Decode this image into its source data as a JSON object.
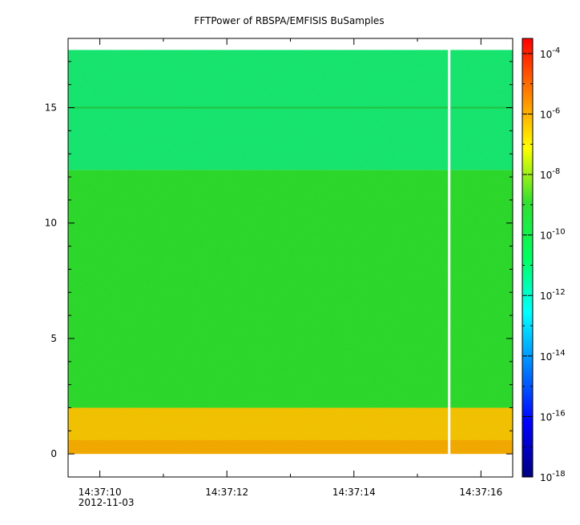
{
  "chart_data": {
    "type": "heatmap",
    "title": "FFTPower of RBSPA/EMFISIS  BuSamples",
    "xlabel": "",
    "ylabel": "",
    "x_tick_labels": [
      "14:37:10",
      "14:37:12",
      "14:37:14",
      "14:37:16"
    ],
    "x_tick_values_sec": [
      10,
      12,
      14,
      16
    ],
    "x_date_label": "2012-11-03",
    "xlim_sec": [
      9.5,
      16.5
    ],
    "y_ticks": [
      0,
      5,
      10,
      15
    ],
    "ylim": [
      -1,
      18
    ],
    "z_scale": "log",
    "zlim_exp": [
      -18,
      -3.5
    ],
    "z_tick_exponents": [
      -4,
      -6,
      -8,
      -10,
      -12,
      -14,
      -16,
      -18
    ],
    "z_tick_base": "10",
    "colormap": "rainbow",
    "data_extent": {
      "x_start_sec": 9.5,
      "x_end_sec": 16.5,
      "y_min": 0,
      "y_max": 17.5
    },
    "gap_at_sec": 15.5,
    "bands": [
      {
        "y_from": 0,
        "y_to": 2.0,
        "log10_power": -8.3,
        "color": "#f0c000"
      },
      {
        "y_from": 2.0,
        "y_to": 12.3,
        "log10_power": -10.8,
        "color": "#2ad62a"
      },
      {
        "y_from": 12.3,
        "y_to": 17.5,
        "log10_power": -11.6,
        "color": "#14e36e"
      }
    ],
    "line_features": [
      {
        "y": 15,
        "log10_power": -10.7
      }
    ]
  }
}
